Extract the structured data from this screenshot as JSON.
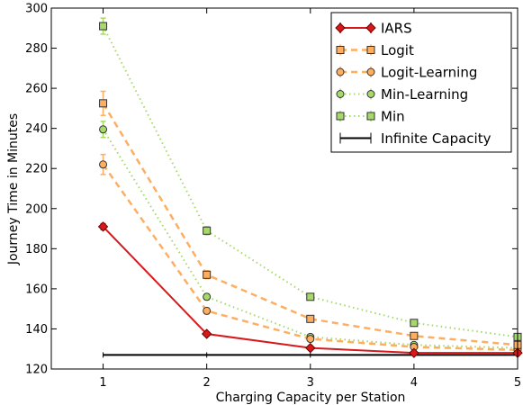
{
  "chart_data": {
    "type": "line",
    "xlabel": "Charging Capacity per Station",
    "ylabel": "Journey Time in Minutes",
    "xlim": [
      0.5,
      5
    ],
    "ylim": [
      120,
      300
    ],
    "x": [
      1,
      2,
      3,
      4,
      5
    ],
    "x_ticks": [
      "1",
      "2",
      "3",
      "4",
      "5"
    ],
    "y_ticks": [
      "120",
      "140",
      "160",
      "180",
      "200",
      "220",
      "240",
      "260",
      "280",
      "300"
    ],
    "grid": false,
    "legend_position": "top-right",
    "series": [
      {
        "name": "IARS",
        "values": [
          191,
          137.5,
          130.5,
          128,
          128
        ],
        "errors": [
          1.5,
          1,
          1,
          1,
          1
        ],
        "color": "#d7191c",
        "marker": "diamond",
        "line": "solid"
      },
      {
        "name": "Logit",
        "values": [
          252.5,
          167,
          145,
          136.5,
          132
        ],
        "errors": [
          6,
          2,
          1.5,
          1,
          1
        ],
        "color": "#fdae61",
        "marker": "square",
        "line": "dashed"
      },
      {
        "name": "Logit-Learning",
        "values": [
          222,
          149,
          135,
          131,
          129.5
        ],
        "errors": [
          5,
          1.5,
          1,
          1,
          1
        ],
        "color": "#fdae61",
        "marker": "circle",
        "line": "dashed"
      },
      {
        "name": "Min-Learning",
        "values": [
          239.5,
          156,
          136,
          132,
          130.5
        ],
        "errors": [
          4,
          1.5,
          1,
          1,
          1
        ],
        "color": "#a6d96a",
        "marker": "circle",
        "line": "dotted"
      },
      {
        "name": "Min",
        "values": [
          291,
          189,
          156,
          143,
          136
        ],
        "errors": [
          4,
          2,
          1,
          1,
          1
        ],
        "color": "#a6d96a",
        "marker": "square",
        "line": "dotted"
      },
      {
        "name": "Infinite Capacity",
        "values": [
          127,
          127,
          127,
          127,
          127
        ],
        "errors": [
          0,
          0,
          0,
          0,
          0
        ],
        "color": "#000000",
        "marker": "none",
        "line": "solid"
      }
    ]
  }
}
